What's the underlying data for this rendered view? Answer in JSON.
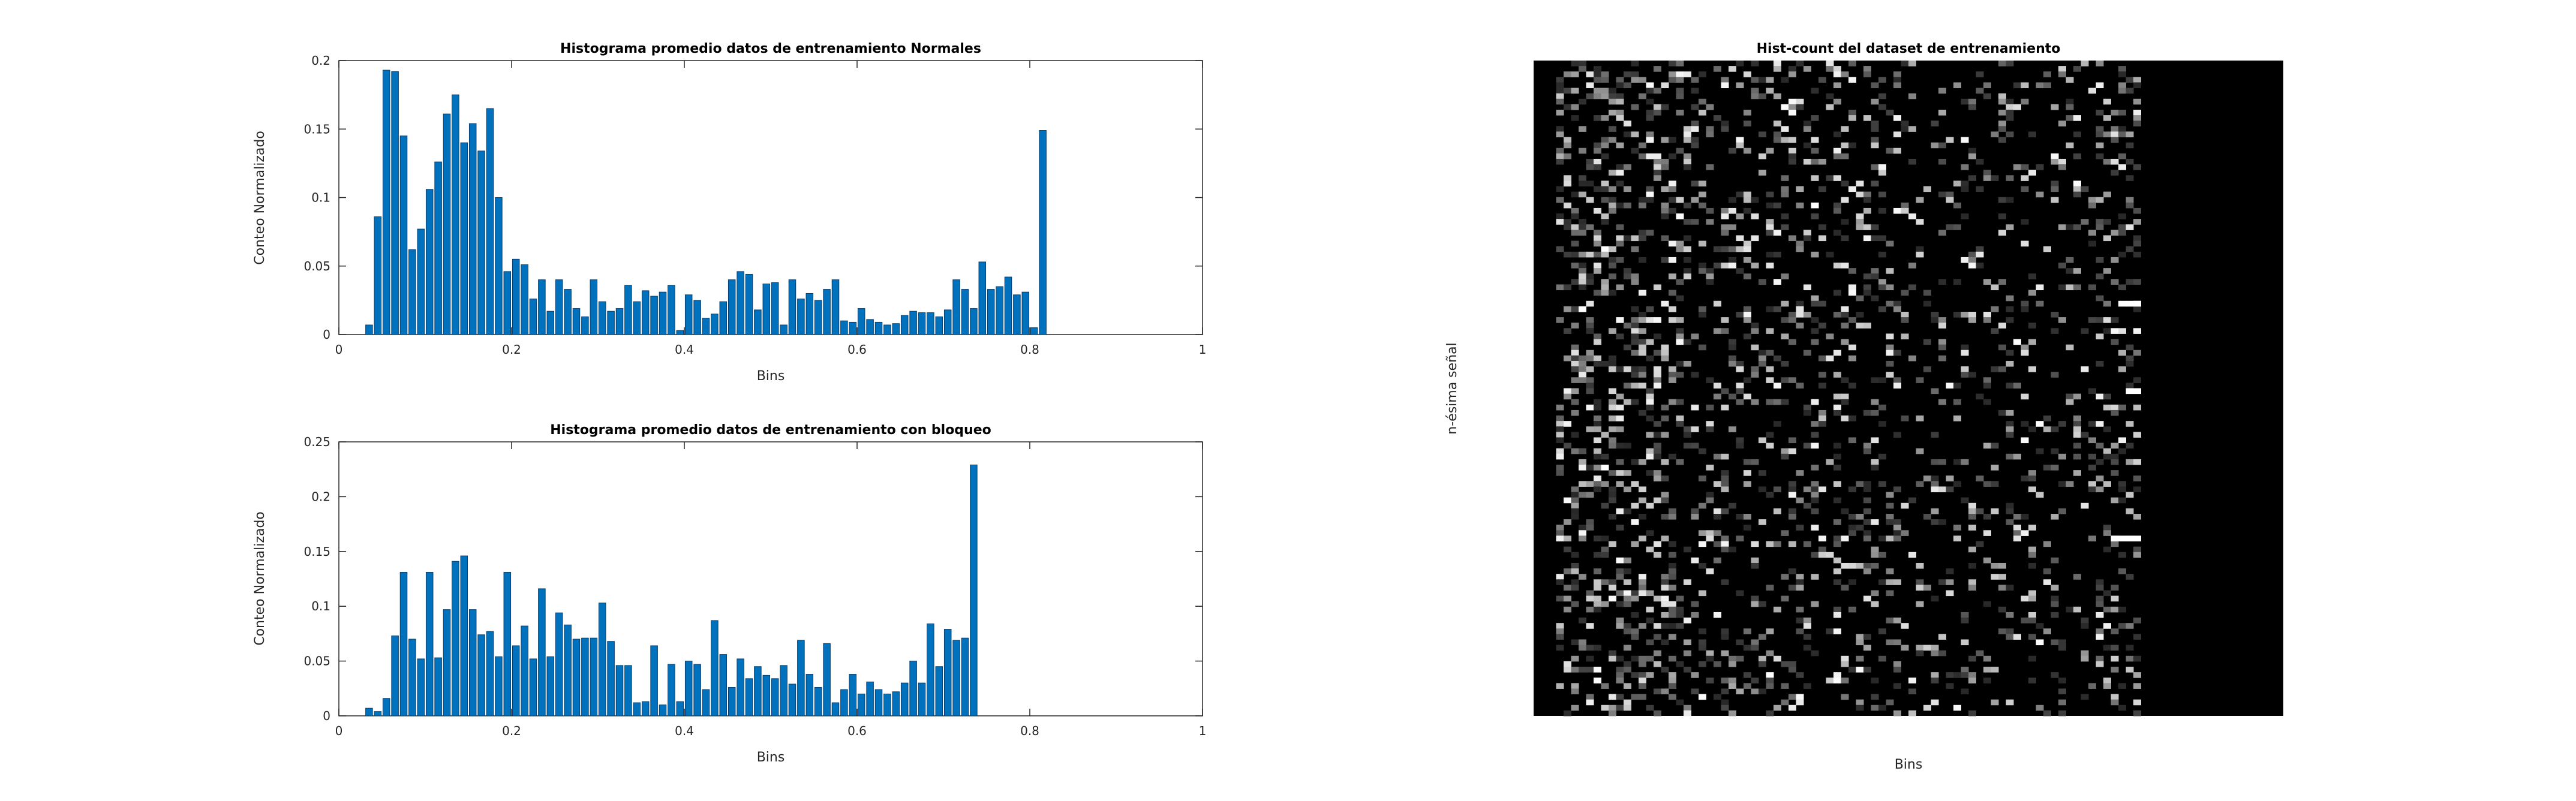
{
  "chart_data": [
    {
      "type": "bar",
      "title": "Histograma promedio datos de entrenamiento Normales",
      "xlabel": "Bins",
      "ylabel": "Conteo Normalizado",
      "xlim": [
        0,
        1
      ],
      "ylim": [
        0,
        0.2
      ],
      "xticks": [
        "0",
        "0.2",
        "0.4",
        "0.6",
        "0.8",
        "1"
      ],
      "yticks": [
        "0",
        "0.05",
        "0.1",
        "0.15",
        "0.2"
      ],
      "bar_color": "#0072BD",
      "bins": 100,
      "values": [
        0,
        0,
        0,
        0.007,
        0.086,
        0.193,
        0.192,
        0.145,
        0.062,
        0.077,
        0.106,
        0.126,
        0.161,
        0.175,
        0.14,
        0.154,
        0.134,
        0.165,
        0.1,
        0.046,
        0.055,
        0.051,
        0.026,
        0.04,
        0.017,
        0.04,
        0.033,
        0.019,
        0.013,
        0.04,
        0.024,
        0.017,
        0.019,
        0.036,
        0.024,
        0.032,
        0.028,
        0.031,
        0.036,
        0.003,
        0.029,
        0.025,
        0.012,
        0.015,
        0.024,
        0.04,
        0.046,
        0.044,
        0.018,
        0.037,
        0.038,
        0.007,
        0.04,
        0.026,
        0.03,
        0.025,
        0.033,
        0.04,
        0.01,
        0.009,
        0.019,
        0.011,
        0.009,
        0.007,
        0.008,
        0.014,
        0.017,
        0.016,
        0.016,
        0.013,
        0.018,
        0.04,
        0.033,
        0.019,
        0.053,
        0.033,
        0.035,
        0.042,
        0.029,
        0.031,
        0.005,
        0.149,
        0,
        0,
        0,
        0,
        0,
        0,
        0,
        0,
        0,
        0,
        0,
        0,
        0,
        0,
        0,
        0,
        0,
        0
      ]
    },
    {
      "type": "bar",
      "title": "Histograma promedio datos de entrenamiento con bloqueo",
      "xlabel": "Bins",
      "ylabel": "Conteo Normalizado",
      "xlim": [
        0,
        1
      ],
      "ylim": [
        0,
        0.25
      ],
      "xticks": [
        "0",
        "0.2",
        "0.4",
        "0.6",
        "0.8",
        "1"
      ],
      "yticks": [
        "0",
        "0.05",
        "0.1",
        "0.15",
        "0.2",
        "0.25"
      ],
      "bar_color": "#0072BD",
      "bins": 100,
      "values": [
        0,
        0,
        0,
        0.007,
        0.004,
        0.016,
        0.073,
        0.131,
        0.07,
        0.052,
        0.131,
        0.053,
        0.097,
        0.141,
        0.146,
        0.097,
        0.074,
        0.077,
        0.054,
        0.131,
        0.064,
        0.082,
        0.052,
        0.116,
        0.054,
        0.094,
        0.083,
        0.07,
        0.071,
        0.071,
        0.103,
        0.068,
        0.046,
        0.046,
        0.012,
        0.013,
        0.064,
        0.01,
        0.047,
        0.013,
        0.05,
        0.047,
        0.024,
        0.087,
        0.056,
        0.026,
        0.052,
        0.034,
        0.045,
        0.037,
        0.034,
        0.046,
        0.029,
        0.069,
        0.038,
        0.026,
        0.066,
        0.012,
        0.024,
        0.038,
        0.02,
        0.031,
        0.024,
        0.02,
        0.022,
        0.03,
        0.05,
        0.03,
        0.084,
        0.045,
        0.079,
        0.069,
        0.071,
        0.229,
        0,
        0,
        0,
        0,
        0,
        0,
        0,
        0,
        0,
        0,
        0,
        0,
        0,
        0,
        0,
        0,
        0,
        0,
        0,
        0,
        0,
        0,
        0,
        0,
        0,
        0
      ]
    },
    {
      "type": "heatmap",
      "title": "Hist-count del dataset de entrenamiento",
      "xlabel": "Bins",
      "ylabel": "n-ésima señal",
      "colormap": "gray",
      "ticks": "none",
      "columns": 100,
      "rows": 120
    }
  ]
}
